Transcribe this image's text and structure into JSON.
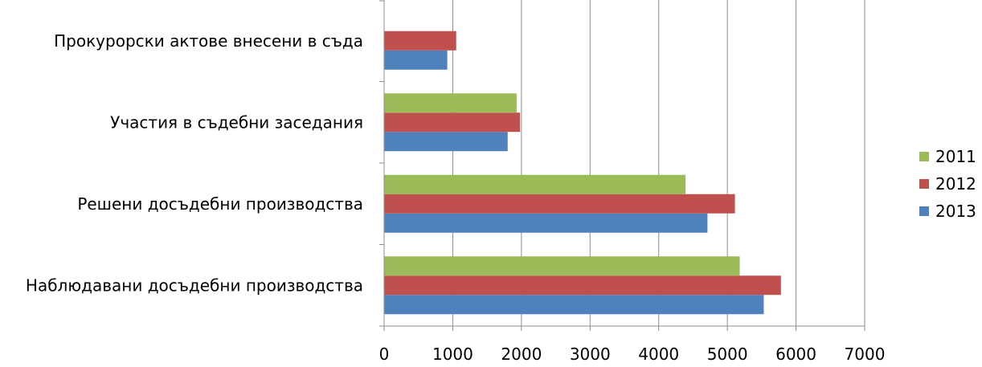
{
  "chart_data": {
    "type": "bar",
    "orientation": "horizontal",
    "categories": [
      "Наблюдавани досъдебни производства",
      "Решени досъдебни производства",
      "Участия в съдебни заседания",
      "Прокурорски актове внесени в съда"
    ],
    "series": [
      {
        "name": "2013",
        "color": "#4F81BD",
        "values": [
          5530,
          4710,
          1800,
          920
        ]
      },
      {
        "name": "2012",
        "color": "#C0504D",
        "values": [
          5780,
          5110,
          1980,
          1050
        ]
      },
      {
        "name": "2011",
        "color": "#9BBB59",
        "values": [
          5180,
          4390,
          1930,
          null
        ]
      }
    ],
    "xlim": [
      0,
      7000
    ],
    "xticks": [
      0,
      1000,
      2000,
      3000,
      4000,
      5000,
      6000,
      7000
    ],
    "grid": true,
    "legend_position": "right",
    "legend_order": [
      "2011",
      "2012",
      "2013"
    ]
  }
}
